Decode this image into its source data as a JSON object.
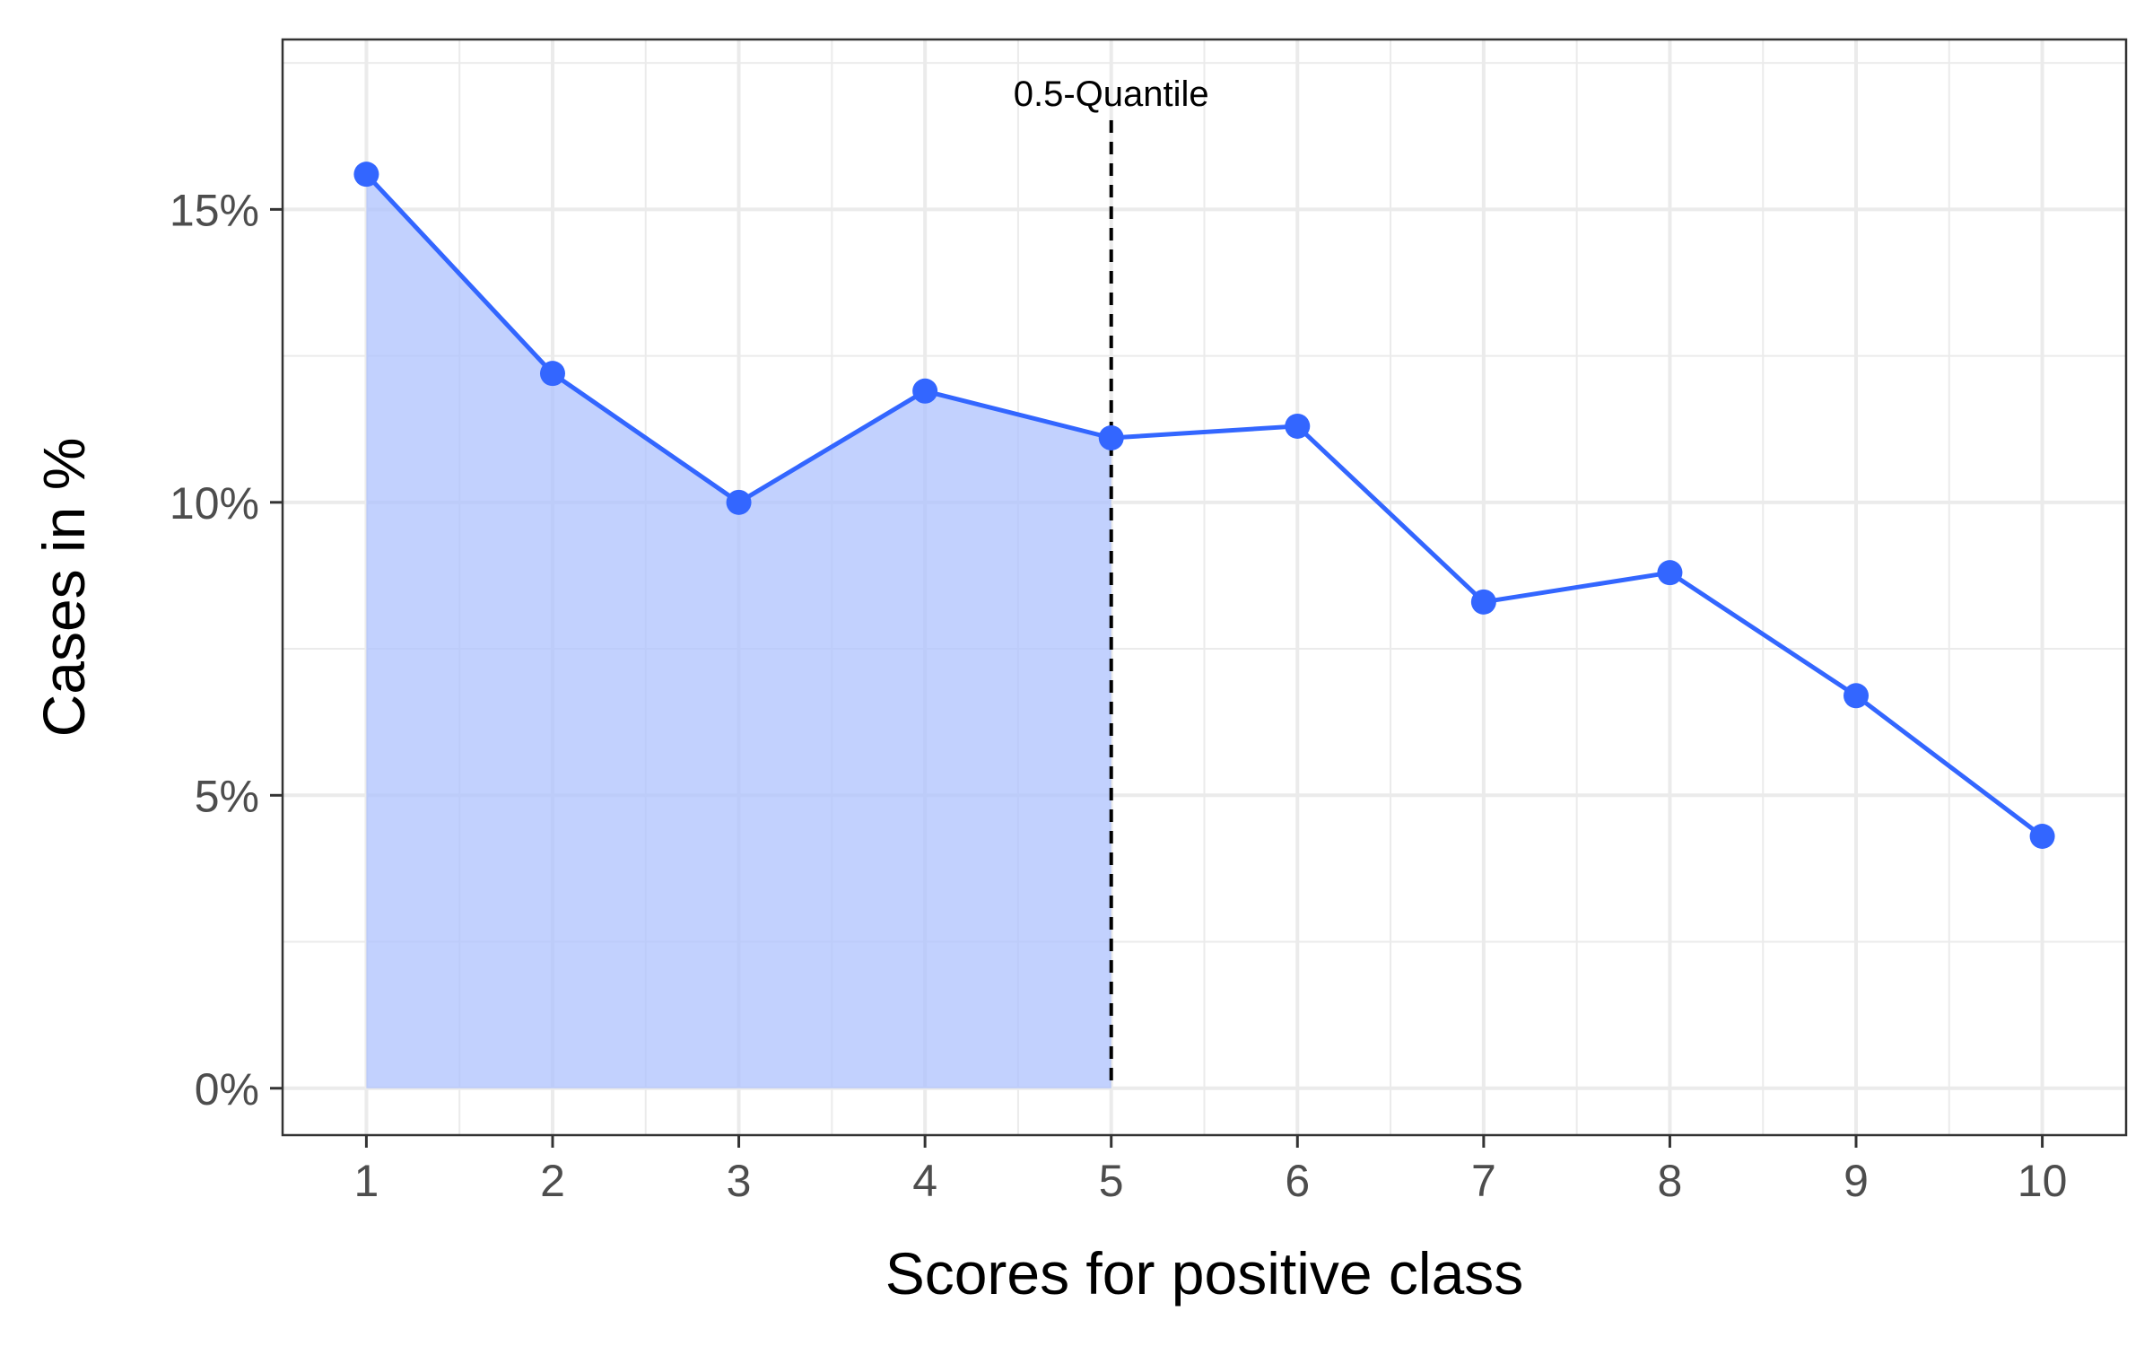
{
  "chart_data": {
    "type": "line",
    "xlabel": "Scores for positive class",
    "ylabel": "Cases in %",
    "x": [
      1,
      2,
      3,
      4,
      5,
      6,
      7,
      8,
      9,
      10
    ],
    "series": [
      {
        "values": [
          15.6,
          12.2,
          10.0,
          11.9,
          11.1,
          11.3,
          8.3,
          8.8,
          6.7,
          4.3
        ]
      }
    ],
    "xlim": [
      0.55,
      10.45
    ],
    "ylim": [
      -0.8,
      17.9
    ],
    "yticks": [
      0,
      5,
      10,
      15
    ],
    "ytick_labels": [
      "0%",
      "5%",
      "10%",
      "15%"
    ],
    "xticks": [
      1,
      2,
      3,
      4,
      5,
      6,
      7,
      8,
      9,
      10
    ],
    "xtick_labels": [
      "1",
      "2",
      "3",
      "4",
      "5",
      "6",
      "7",
      "8",
      "9",
      "10"
    ],
    "shaded_region": {
      "from_x": 1,
      "to_x": 5
    },
    "vline": {
      "x": 5,
      "label": "0.5-Quantile",
      "style": "dashed"
    },
    "grid": true,
    "colors": {
      "line": "#3366ff",
      "fill": "#adc2fd",
      "grid": "#ebebeb",
      "border": "#333333",
      "vline": "#000000"
    }
  }
}
